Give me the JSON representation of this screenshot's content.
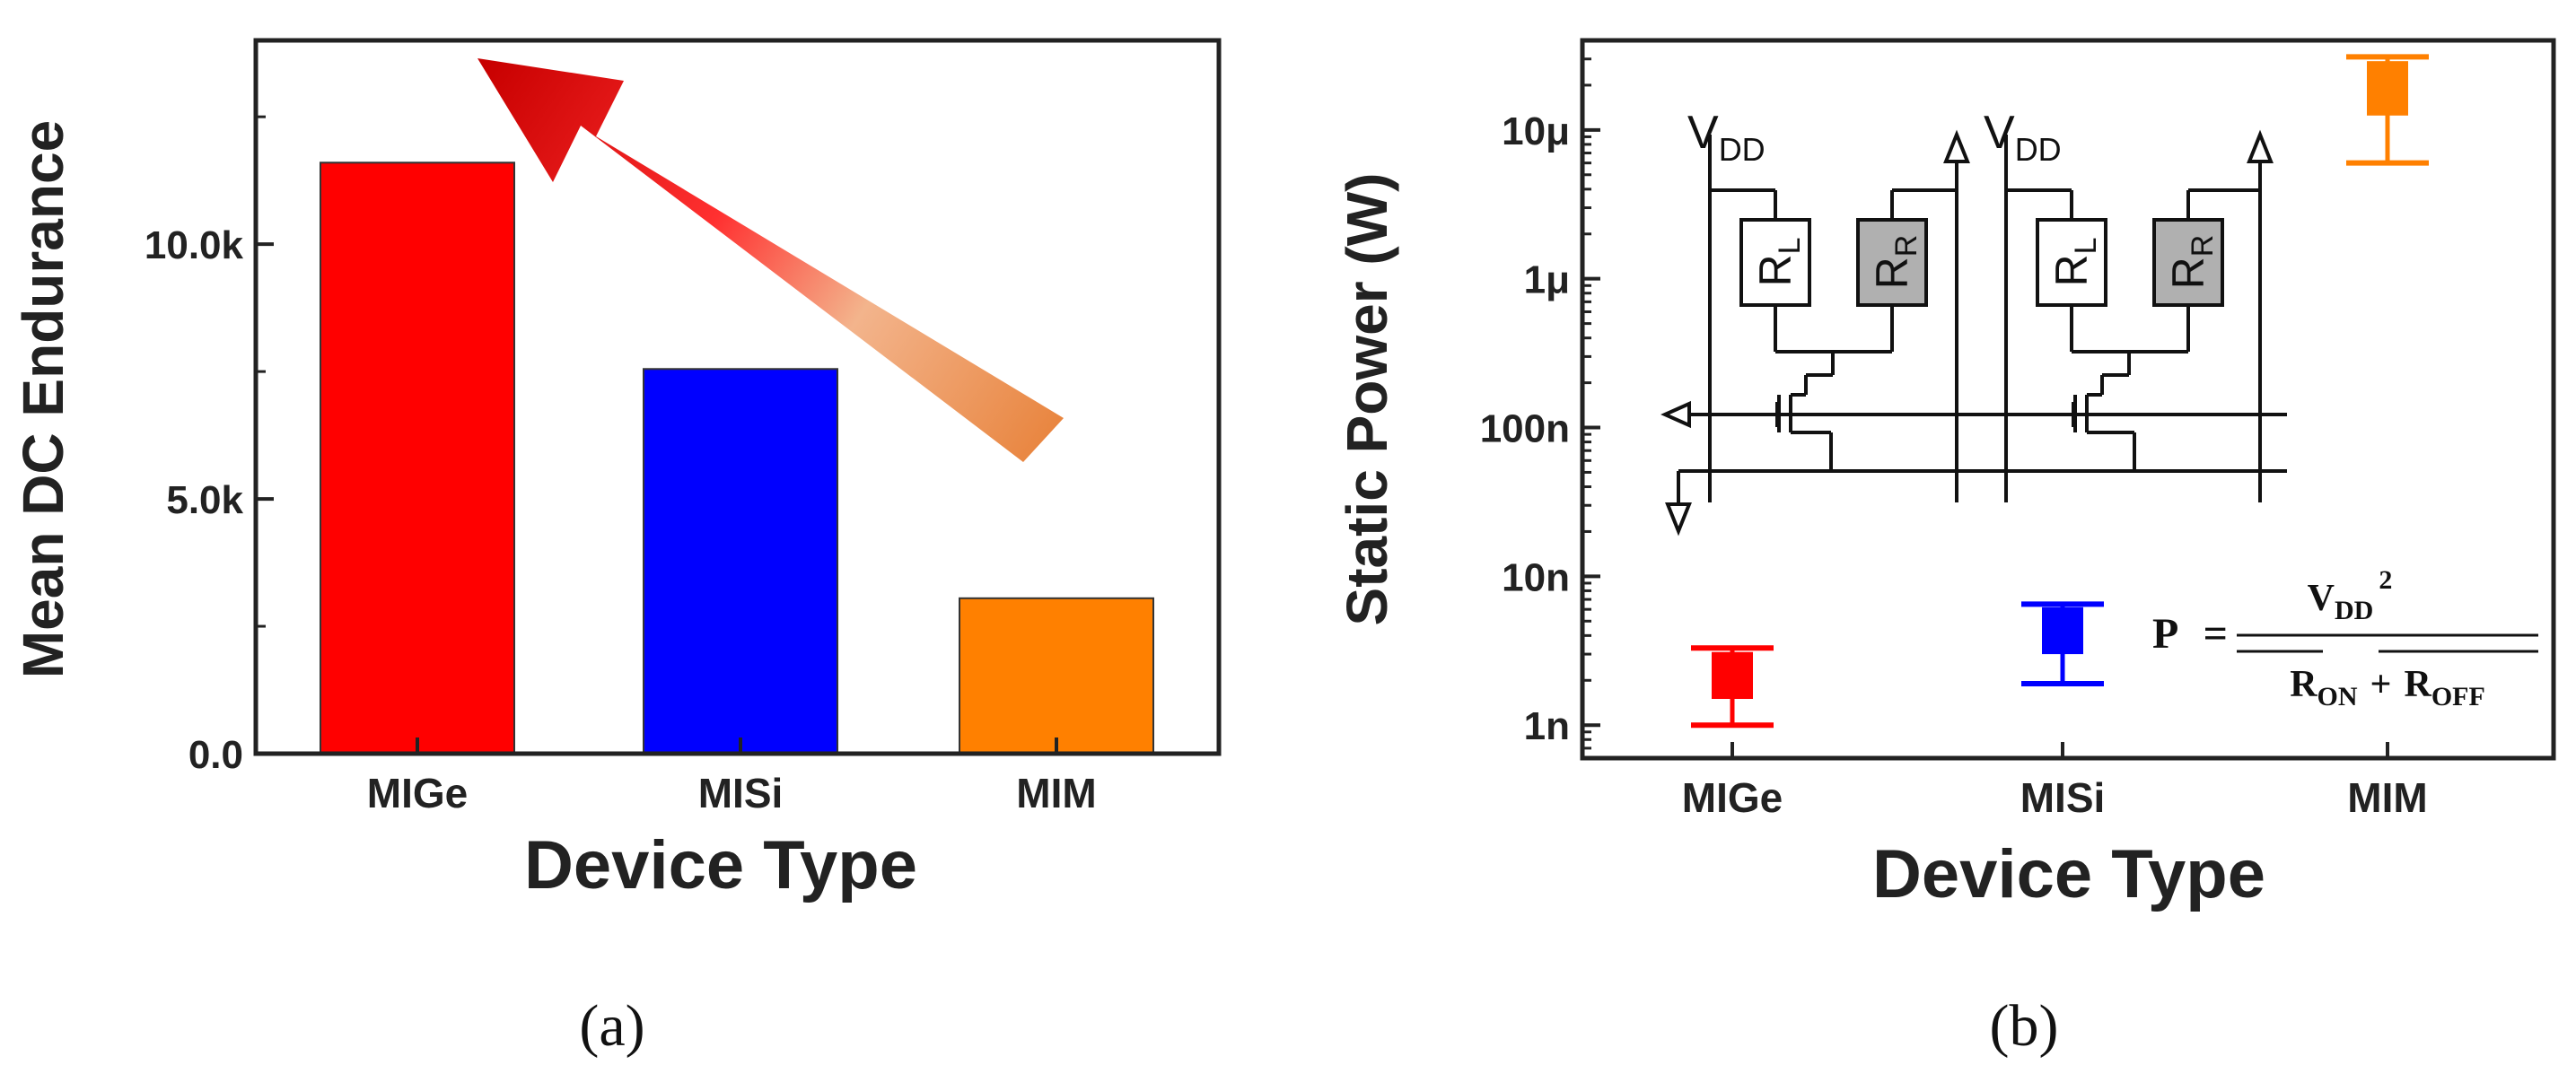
{
  "chart_data": [
    {
      "type": "bar",
      "panel_label": "(a)",
      "categories": [
        "MIGe",
        "MISi",
        "MIM"
      ],
      "values": [
        11600,
        7550,
        3050
      ],
      "colors": [
        "#ff0000",
        "#0000ff",
        "#ff8000"
      ],
      "xlabel": "Device Type",
      "ylabel": "Mean DC Endurance",
      "ylim": [
        0,
        14000
      ],
      "yticks": [
        0,
        5000,
        10000
      ],
      "ytick_labels": [
        "0.0",
        "5.0k",
        "10.0k"
      ],
      "annotation": "arrow indicating increasing endurance from MIM to MIGe"
    },
    {
      "type": "box",
      "panel_label": "(b)",
      "categories": [
        "MIGe",
        "MISi",
        "MIM"
      ],
      "colors": [
        "#ff0000",
        "#0000ff",
        "#ff8000"
      ],
      "xlabel": "Device Type",
      "ylabel": "Static Power (W)",
      "yscale": "log",
      "ylim": [
        6e-10,
        4e-05
      ],
      "yticks": [
        1e-09,
        1e-08,
        1e-07,
        1e-06,
        1e-05
      ],
      "ytick_labels": [
        "1n",
        "10n",
        "100n",
        "1μ",
        "10μ"
      ],
      "series": [
        {
          "name": "MIGe",
          "whisker_low": 1e-09,
          "box_low": 1.5e-09,
          "box_high": 3.1e-09,
          "whisker_high": 3.3e-09
        },
        {
          "name": "MISi",
          "whisker_low": 1.9e-09,
          "box_low": 3e-09,
          "box_high": 6.2e-09,
          "whisker_high": 6.5e-09
        },
        {
          "name": "MIM",
          "whisker_low": 6e-06,
          "box_low": 1.25e-05,
          "box_high": 2.9e-05,
          "whisker_high": 3.1e-05
        }
      ],
      "circuit_labels": {
        "vdd_main": "V",
        "vdd_sub": "DD",
        "rl_main": "R",
        "rl_sub": "L",
        "rr_main": "R",
        "rr_sub": "R"
      },
      "formula": {
        "lhs": "P",
        "equals": "=",
        "num_main": "V",
        "num_sub": "DD",
        "num_sup": "2",
        "den_a_main": "R",
        "den_a_sub": "ON",
        "plus": "+",
        "den_b_main": "R",
        "den_b_sub": "OFF"
      }
    }
  ]
}
